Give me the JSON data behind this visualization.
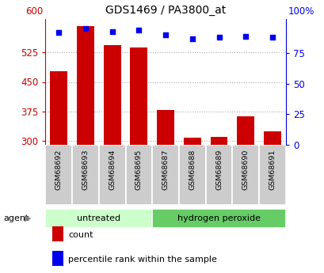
{
  "title": "GDS1469 / PA3800_at",
  "samples": [
    "GSM68692",
    "GSM68693",
    "GSM68694",
    "GSM68695",
    "GSM68687",
    "GSM68688",
    "GSM68689",
    "GSM68690",
    "GSM68691"
  ],
  "counts": [
    477,
    592,
    543,
    537,
    378,
    308,
    309,
    362,
    323
  ],
  "percentiles": [
    92,
    95,
    93,
    94,
    90,
    87,
    88,
    89,
    88
  ],
  "groups": [
    {
      "label": "untreated",
      "start": 0,
      "end": 4
    },
    {
      "label": "hydrogen peroxide",
      "start": 4,
      "end": 9
    }
  ],
  "ylim_left": [
    290,
    610
  ],
  "ylim_right": [
    0,
    103
  ],
  "yticks_left": [
    300,
    375,
    450,
    525
  ],
  "yticks_right": [
    0,
    25,
    50,
    75
  ],
  "bar_color": "#cc0000",
  "dot_color": "#0000ee",
  "bar_bottom": 290,
  "group_bg_untreated": "#ccffcc",
  "group_bg_peroxide": "#66cc66",
  "sample_bg": "#cccccc",
  "grid_color": "#aaaaaa"
}
